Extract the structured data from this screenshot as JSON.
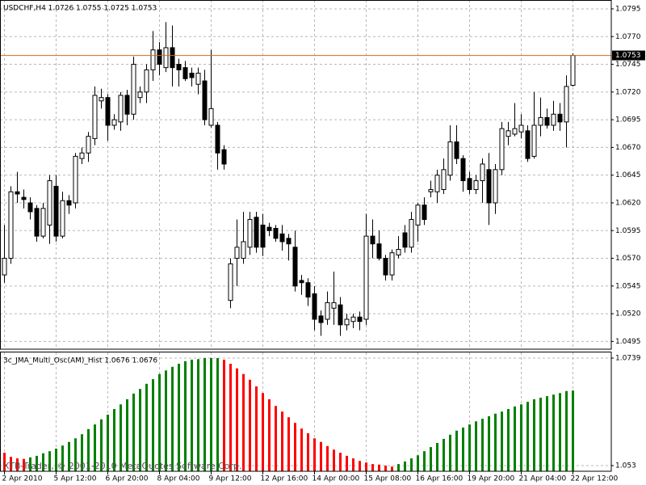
{
  "chart_data": [
    {
      "type": "candlestick",
      "title": "USDCHF,H4  1.0726 1.0755 1.0725 1.0753",
      "categories": [
        "2 Apr 2010",
        null,
        null,
        null,
        null,
        null,
        null,
        null,
        "5 Apr 12:00",
        null,
        null,
        null,
        null,
        null,
        null,
        null,
        "6 Apr 20:00",
        null,
        null,
        null,
        null,
        null,
        null,
        null,
        "8 Apr 04:00",
        null,
        null,
        null,
        null,
        null,
        null,
        null,
        "9 Apr 12:00",
        null,
        null,
        null,
        null,
        null,
        null,
        null,
        "12 Apr 16:00",
        null,
        null,
        null,
        null,
        null,
        null,
        null,
        "14 Apr 00:00",
        null,
        null,
        null,
        null,
        null,
        null,
        null,
        "15 Apr 08:00",
        null,
        null,
        null,
        null,
        null,
        null,
        null,
        "16 Apr 16:00",
        null,
        null,
        null,
        null,
        null,
        null,
        null,
        "19 Apr 20:00",
        null,
        null,
        null,
        null,
        null,
        null,
        null,
        "21 Apr 04:00",
        null,
        null,
        null,
        null,
        null,
        null,
        null,
        "22 Apr 12:00"
      ],
      "open": [
        1.0555,
        1.057,
        1.063,
        1.0625,
        1.062,
        1.0615,
        1.059,
        1.06,
        1.0635,
        1.059,
        1.0622,
        1.062,
        1.066,
        1.0665,
        1.0678,
        1.0712,
        1.0715,
        1.069,
        1.0693,
        1.0717,
        1.07,
        1.0715,
        1.072,
        1.074,
        1.0758,
        1.0742,
        1.076,
        1.0745,
        1.0742,
        1.0737,
        1.0727,
        1.073,
        1.069,
        1.069,
        1.0668,
        1.0532,
        1.057,
        1.057,
        1.058,
        1.0607,
        1.06,
        1.0598,
        1.0597,
        1.0592,
        1.0588,
        1.058,
        1.055,
        1.0548,
        1.0538,
        1.0518,
        1.0515,
        1.0525,
        1.0528,
        1.051,
        1.0513,
        1.0517,
        1.0515,
        1.059,
        1.0583,
        1.057,
        1.0555,
        1.0573,
        1.0593,
        1.058,
        1.06,
        1.0618,
        1.063,
        1.063,
        1.0632,
        1.0645,
        1.0675,
        1.066,
        1.0642,
        1.0632,
        1.064,
        1.065,
        1.062,
        1.065,
        1.068,
        1.0682,
        1.0684,
        1.0685,
        1.0662,
        1.069,
        1.0697,
        1.069,
        1.07,
        1.0693,
        1.0726
      ],
      "high": [
        1.06,
        1.0635,
        1.0648,
        1.0632,
        1.0625,
        1.0618,
        1.062,
        1.0645,
        1.0645,
        1.063,
        1.0627,
        1.0665,
        1.067,
        1.0684,
        1.0725,
        1.0723,
        1.0718,
        1.07,
        1.072,
        1.0722,
        1.0752,
        1.0725,
        1.0745,
        1.0775,
        1.0765,
        1.0783,
        1.078,
        1.075,
        1.0748,
        1.0742,
        1.0742,
        1.074,
        1.0758,
        1.0693,
        1.0672,
        1.057,
        1.0605,
        1.0612,
        1.0612,
        1.0612,
        1.061,
        1.0602,
        1.06,
        1.06,
        1.0592,
        1.0595,
        1.0555,
        1.0552,
        1.0545,
        1.0523,
        1.054,
        1.0558,
        1.0535,
        1.052,
        1.052,
        1.0522,
        1.061,
        1.0605,
        1.0595,
        1.0573,
        1.0578,
        1.059,
        1.06,
        1.0612,
        1.062,
        1.0625,
        1.064,
        1.065,
        1.066,
        1.069,
        1.069,
        1.0663,
        1.0648,
        1.0645,
        1.066,
        1.0665,
        1.0655,
        1.0693,
        1.0693,
        1.071,
        1.07,
        1.069,
        1.072,
        1.0715,
        1.0705,
        1.0712,
        1.071,
        1.0735,
        1.0755
      ],
      "low": [
        1.0548,
        1.0565,
        1.062,
        1.0615,
        1.0605,
        1.0585,
        1.0588,
        1.0583,
        1.0585,
        1.0588,
        1.061,
        1.0615,
        1.0655,
        1.0657,
        1.0672,
        1.0705,
        1.0676,
        1.0686,
        1.0685,
        1.069,
        1.0695,
        1.071,
        1.071,
        1.073,
        1.0735,
        1.0738,
        1.0725,
        1.0725,
        1.073,
        1.0725,
        1.0718,
        1.069,
        1.0688,
        1.065,
        1.065,
        1.0525,
        1.0545,
        1.0565,
        1.0573,
        1.0575,
        1.0572,
        1.059,
        1.0585,
        1.0577,
        1.0568,
        1.054,
        1.0537,
        1.0527,
        1.0505,
        1.05,
        1.051,
        1.051,
        1.05,
        1.0505,
        1.0507,
        1.0505,
        1.051,
        1.057,
        1.0568,
        1.055,
        1.055,
        1.057,
        1.0575,
        1.0575,
        1.0585,
        1.06,
        1.0625,
        1.062,
        1.0628,
        1.064,
        1.0655,
        1.063,
        1.0628,
        1.0628,
        1.062,
        1.06,
        1.061,
        1.0645,
        1.0672,
        1.068,
        1.0678,
        1.0657,
        1.066,
        1.068,
        1.0687,
        1.0685,
        1.0685,
        1.067,
        1.0725
      ],
      "close": [
        1.057,
        1.063,
        1.0628,
        1.0623,
        1.0612,
        1.059,
        1.0615,
        1.064,
        1.059,
        1.0622,
        1.0618,
        1.0662,
        1.0665,
        1.068,
        1.0717,
        1.0715,
        1.069,
        1.0695,
        1.0717,
        1.07,
        1.0745,
        1.072,
        1.074,
        1.0758,
        1.0745,
        1.076,
        1.0742,
        1.074,
        1.0732,
        1.0733,
        1.0737,
        1.0695,
        1.0705,
        1.0665,
        1.0655,
        1.0565,
        1.058,
        1.0585,
        1.0605,
        1.058,
        1.058,
        1.0595,
        1.0588,
        1.0585,
        1.0583,
        1.0545,
        1.0548,
        1.0535,
        1.0515,
        1.0512,
        1.053,
        1.053,
        1.051,
        1.0515,
        1.0517,
        1.0513,
        1.059,
        1.0583,
        1.057,
        1.0555,
        1.0575,
        1.0578,
        1.058,
        1.0605,
        1.0618,
        1.0605,
        1.0632,
        1.0645,
        1.065,
        1.0675,
        1.066,
        1.064,
        1.0632,
        1.064,
        1.0655,
        1.062,
        1.065,
        1.0687,
        1.0685,
        1.0687,
        1.069,
        1.066,
        1.069,
        1.0697,
        1.069,
        1.07,
        1.0693,
        1.0725,
        1.0753
      ],
      "up_color": "#ffffff",
      "down_color": "#000000",
      "ylim": [
        1.0488,
        1.0803
      ],
      "yticks": [
        1.0795,
        {
          "value": 1.077,
          "label": "1.0770"
        },
        1.0745,
        {
          "value": 1.072,
          "label": "1.0720"
        },
        1.0695,
        {
          "value": 1.067,
          "label": "1.0670"
        },
        1.0645,
        {
          "value": 1.062,
          "label": "1.0620"
        },
        1.0595,
        {
          "value": 1.057,
          "label": "1.0570"
        },
        1.0545,
        {
          "value": 1.052,
          "label": "1.0520"
        },
        1.0495
      ],
      "grid": true,
      "current_price": 1.0753,
      "current_price_color": "#d2691e"
    },
    {
      "type": "bar",
      "title": "3c_JMA_Multi_Osc(AM)_Hist 1.0676 1.0676",
      "values": [
        1.0555,
        1.0547,
        1.0544,
        1.0543,
        1.0546,
        1.0549,
        1.0554,
        1.0558,
        1.0563,
        1.0569,
        1.0576,
        1.0583,
        1.0591,
        1.0601,
        1.061,
        1.062,
        1.0629,
        1.064,
        1.0649,
        1.0659,
        1.067,
        1.0679,
        1.0689,
        1.0698,
        1.0708,
        1.0715,
        1.0722,
        1.0728,
        1.0733,
        1.0736,
        1.0737,
        1.0739,
        1.0739,
        1.0739,
        1.0736,
        1.0728,
        1.0719,
        1.0708,
        1.0697,
        1.0684,
        1.0671,
        1.0659,
        1.0646,
        1.0635,
        1.0624,
        1.0613,
        1.0602,
        1.0593,
        1.0583,
        1.0576,
        1.0568,
        1.0561,
        1.0555,
        1.0549,
        1.0544,
        1.0539,
        1.0536,
        1.0533,
        1.0532,
        1.053,
        1.0528,
        1.0533,
        1.0538,
        1.0544,
        1.055,
        1.0558,
        1.0566,
        1.0574,
        1.0582,
        1.059,
        1.0598,
        1.0604,
        1.061,
        1.0616,
        1.0621,
        1.0626,
        1.0631,
        1.0635,
        1.064,
        1.0645,
        1.0649,
        1.0654,
        1.0659,
        1.0662,
        1.0665,
        1.0668,
        1.0671,
        1.0675,
        1.0676
      ],
      "up_color": "#008000",
      "down_color": "#ff0000",
      "ylim": [
        1.0519,
        1.075
      ],
      "yticks": [
        1.0739,
        1.053
      ],
      "grid": true
    }
  ],
  "watermark": "XTB-Trader, © 2001-2010 MetaQuotes Software Corp."
}
